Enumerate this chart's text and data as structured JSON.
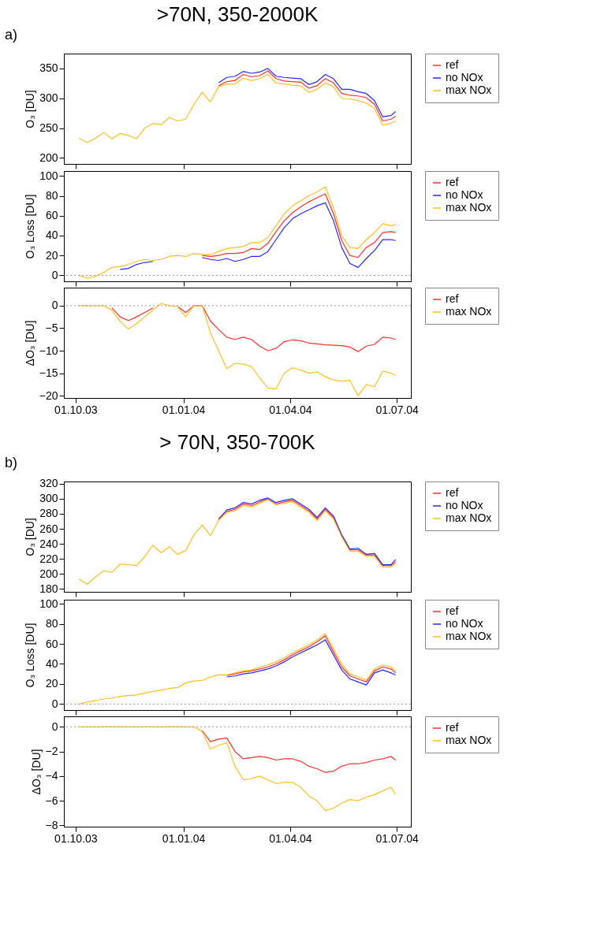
{
  "chart_data": [
    {
      "type": "line",
      "title": ">70N, 350-2000K",
      "annotations": [
        "a)"
      ],
      "ylabel": "O₃ [DU]",
      "tick_labels": "y",
      "legend": "right",
      "x": [
        "2003-10-04",
        "2003-10-11",
        "2003-10-18",
        "2003-10-25",
        "2003-11-01",
        "2003-11-08",
        "2003-11-15",
        "2003-11-22",
        "2003-11-29",
        "2003-12-06",
        "2003-12-13",
        "2003-12-20",
        "2003-12-27",
        "2004-01-03",
        "2004-01-10",
        "2004-01-17",
        "2004-01-24",
        "2004-01-31",
        "2004-02-07",
        "2004-02-14",
        "2004-02-21",
        "2004-02-28",
        "2004-03-06",
        "2004-03-13",
        "2004-03-20",
        "2004-03-27",
        "2004-04-03",
        "2004-04-10",
        "2004-04-17",
        "2004-04-24",
        "2004-05-01",
        "2004-05-08",
        "2004-05-15",
        "2004-05-22",
        "2004-05-29",
        "2004-06-05",
        "2004-06-12",
        "2004-06-19",
        "2004-06-26",
        "2004-06-30"
      ],
      "xlim": [
        "2003-09-21",
        "2004-07-13"
      ],
      "xticks": [
        {
          "value": "2003-10-01",
          "label": null
        },
        {
          "value": "2004-01-01",
          "label": null
        },
        {
          "value": "2004-04-01",
          "label": null
        },
        {
          "value": "2004-07-01",
          "label": null
        }
      ],
      "ylim": [
        190,
        375
      ],
      "yticks": [
        200,
        250,
        300,
        350
      ],
      "series": [
        {
          "name": "ref",
          "color": "#ff3030",
          "values": [
            null,
            null,
            null,
            null,
            null,
            null,
            null,
            null,
            null,
            null,
            null,
            null,
            null,
            null,
            null,
            null,
            null,
            321,
            328,
            330,
            340,
            336,
            338,
            346,
            333,
            329,
            328,
            327,
            317,
            321,
            333,
            326,
            308,
            305,
            304,
            301,
            290,
            262,
            265,
            270
          ]
        },
        {
          "name": "no NOx",
          "color": "#2828ff",
          "values": [
            null,
            null,
            null,
            null,
            null,
            null,
            null,
            null,
            null,
            null,
            null,
            null,
            null,
            null,
            null,
            null,
            null,
            326,
            335,
            337,
            345,
            342,
            344,
            350,
            337,
            335,
            334,
            333,
            323,
            328,
            340,
            333,
            315,
            315,
            311,
            308,
            296,
            269,
            271,
            278
          ]
        },
        {
          "name": "max NOx",
          "color": "#ffc020",
          "values": [
            233,
            226,
            233,
            243,
            232,
            241,
            238,
            232,
            250,
            258,
            256,
            268,
            262,
            265,
            290,
            310,
            294,
            319,
            324,
            324,
            334,
            330,
            333,
            340,
            326,
            324,
            322,
            321,
            310,
            315,
            326,
            319,
            300,
            299,
            296,
            292,
            283,
            255,
            258,
            262
          ]
        }
      ]
    },
    {
      "type": "line",
      "ylabel": "O₃ Loss [DU]",
      "tick_labels": "y",
      "legend": "right",
      "x": [
        "2003-10-04",
        "2003-10-11",
        "2003-10-18",
        "2003-10-25",
        "2003-11-01",
        "2003-11-08",
        "2003-11-15",
        "2003-11-22",
        "2003-11-29",
        "2003-12-06",
        "2003-12-13",
        "2003-12-20",
        "2003-12-27",
        "2004-01-03",
        "2004-01-10",
        "2004-01-17",
        "2004-01-24",
        "2004-01-31",
        "2004-02-07",
        "2004-02-14",
        "2004-02-21",
        "2004-02-28",
        "2004-03-06",
        "2004-03-13",
        "2004-03-20",
        "2004-03-27",
        "2004-04-03",
        "2004-04-10",
        "2004-04-17",
        "2004-04-24",
        "2004-05-01",
        "2004-05-08",
        "2004-05-15",
        "2004-05-22",
        "2004-05-29",
        "2004-06-05",
        "2004-06-12",
        "2004-06-19",
        "2004-06-26",
        "2004-06-30"
      ],
      "xlim": [
        "2003-09-21",
        "2004-07-13"
      ],
      "xticks": [
        {
          "value": "2003-10-01",
          "label": null
        },
        {
          "value": "2004-01-01",
          "label": null
        },
        {
          "value": "2004-04-01",
          "label": null
        },
        {
          "value": "2004-07-01",
          "label": null
        }
      ],
      "ylim": [
        -6,
        105
      ],
      "yticks": [
        0,
        20,
        40,
        60,
        80,
        100
      ],
      "ref_lines": [
        {
          "axis": "y",
          "value": 0,
          "line_style": "dotted",
          "color": "#999999"
        }
      ],
      "series": [
        {
          "name": "ref",
          "color": "#ff3030",
          "values": [
            null,
            null,
            null,
            null,
            null,
            null,
            null,
            null,
            null,
            null,
            null,
            null,
            null,
            null,
            null,
            20,
            19,
            20,
            22,
            22,
            23,
            27,
            26,
            32,
            44,
            55,
            63,
            69,
            74,
            78,
            82,
            62,
            35,
            20,
            18,
            28,
            33,
            43,
            44,
            43
          ]
        },
        {
          "name": "no NOx",
          "color": "#2828ff",
          "values": [
            null,
            null,
            null,
            null,
            null,
            6,
            7,
            11,
            13,
            14,
            null,
            null,
            null,
            null,
            null,
            18,
            16,
            15,
            17,
            14,
            16,
            19,
            19,
            24,
            36,
            48,
            57,
            62,
            66,
            70,
            73,
            55,
            28,
            12,
            8,
            17,
            25,
            36,
            36,
            35
          ]
        },
        {
          "name": "max NOx",
          "color": "#ffc020",
          "values": [
            0,
            -3,
            -1,
            3,
            8,
            9,
            11,
            14,
            16,
            15,
            16,
            19,
            20,
            19,
            22,
            21,
            21,
            24,
            27,
            28,
            29,
            33,
            33,
            38,
            50,
            62,
            70,
            75,
            80,
            84,
            89,
            68,
            40,
            28,
            27,
            36,
            43,
            52,
            50,
            51
          ]
        }
      ]
    },
    {
      "type": "line",
      "ylabel": "ΔO₃ [DU]",
      "legend": "right",
      "x": [
        "2003-10-04",
        "2003-10-11",
        "2003-10-18",
        "2003-10-25",
        "2003-11-01",
        "2003-11-08",
        "2003-11-15",
        "2003-11-22",
        "2003-11-29",
        "2003-12-06",
        "2003-12-13",
        "2003-12-20",
        "2003-12-27",
        "2004-01-03",
        "2004-01-10",
        "2004-01-17",
        "2004-01-24",
        "2004-01-31",
        "2004-02-07",
        "2004-02-14",
        "2004-02-21",
        "2004-02-28",
        "2004-03-06",
        "2004-03-13",
        "2004-03-20",
        "2004-03-27",
        "2004-04-03",
        "2004-04-10",
        "2004-04-17",
        "2004-04-24",
        "2004-05-01",
        "2004-05-08",
        "2004-05-15",
        "2004-05-22",
        "2004-05-29",
        "2004-06-05",
        "2004-06-12",
        "2004-06-19",
        "2004-06-26",
        "2004-06-30"
      ],
      "xlim": [
        "2003-09-21",
        "2004-07-13"
      ],
      "xticks": [
        {
          "value": "2003-10-01",
          "label": "01.10.03"
        },
        {
          "value": "2004-01-01",
          "label": "01.01.04"
        },
        {
          "value": "2004-04-01",
          "label": "01.04.04"
        },
        {
          "value": "2004-07-01",
          "label": "01.07.04"
        }
      ],
      "ylim": [
        -20.5,
        4
      ],
      "yticks": [
        -20,
        -15,
        -10,
        -5,
        0
      ],
      "ref_lines": [
        {
          "axis": "y",
          "value": 0,
          "line_style": "dotted",
          "color": "#999999"
        }
      ],
      "series": [
        {
          "name": "ref",
          "color": "#ff3030",
          "values": [
            null,
            null,
            null,
            null,
            -0.5,
            -2.5,
            -3.3,
            -2.5,
            -1.5,
            -0.5,
            null,
            null,
            -0.2,
            -1.5,
            0,
            0,
            -3.4,
            -5.3,
            -7,
            -7.5,
            -7,
            -7.5,
            -9,
            -10,
            -9.5,
            -8,
            -7.6,
            -7.8,
            -8.3,
            -8.5,
            -8.7,
            -8.8,
            -8.9,
            -9.2,
            -10.2,
            -9,
            -8.6,
            -7,
            -7.2,
            -7.5
          ]
        },
        {
          "name": "max NOx",
          "color": "#ffc020",
          "values": [
            0,
            0,
            0,
            0,
            -1,
            -3.5,
            -5.2,
            -4,
            -2.5,
            -1,
            0.5,
            0,
            -0.2,
            -2.5,
            0,
            0,
            -6,
            -10,
            -14,
            -12.8,
            -13,
            -13.5,
            -16,
            -18.3,
            -18.5,
            -15,
            -13.8,
            -14.3,
            -15,
            -14.7,
            -15.8,
            -16.5,
            -16.8,
            -16.6,
            -20,
            -17.5,
            -18,
            -14.5,
            -15,
            -15.5
          ]
        }
      ]
    },
    {
      "type": "line",
      "title": "> 70N, 350-700K",
      "annotations": [
        "b)"
      ],
      "ylabel": "O₃ [DU]",
      "tick_labels": "y",
      "legend": "right",
      "x": [
        "2003-10-04",
        "2003-10-11",
        "2003-10-18",
        "2003-10-25",
        "2003-11-01",
        "2003-11-08",
        "2003-11-15",
        "2003-11-22",
        "2003-11-29",
        "2003-12-06",
        "2003-12-13",
        "2003-12-20",
        "2003-12-27",
        "2004-01-03",
        "2004-01-10",
        "2004-01-17",
        "2004-01-24",
        "2004-01-31",
        "2004-02-07",
        "2004-02-14",
        "2004-02-21",
        "2004-02-28",
        "2004-03-06",
        "2004-03-13",
        "2004-03-20",
        "2004-03-27",
        "2004-04-03",
        "2004-04-10",
        "2004-04-17",
        "2004-04-24",
        "2004-05-01",
        "2004-05-08",
        "2004-05-15",
        "2004-05-22",
        "2004-05-29",
        "2004-06-05",
        "2004-06-12",
        "2004-06-19",
        "2004-06-26",
        "2004-06-30"
      ],
      "xlim": [
        "2003-09-21",
        "2004-07-13"
      ],
      "xticks": [
        {
          "value": "2003-10-01",
          "label": null
        },
        {
          "value": "2004-01-01",
          "label": null
        },
        {
          "value": "2004-04-01",
          "label": null
        },
        {
          "value": "2004-07-01",
          "label": null
        }
      ],
      "ylim": [
        176,
        323
      ],
      "yticks": [
        180,
        200,
        220,
        240,
        260,
        280,
        300,
        320
      ],
      "series": [
        {
          "name": "ref",
          "color": "#ff3030",
          "values": [
            null,
            null,
            null,
            null,
            null,
            null,
            null,
            null,
            null,
            null,
            null,
            null,
            null,
            null,
            null,
            null,
            null,
            272,
            283,
            286,
            293,
            291,
            296,
            300,
            293,
            296,
            298,
            291,
            284,
            273,
            286,
            275,
            251,
            232,
            232,
            225,
            225,
            211,
            211,
            216
          ]
        },
        {
          "name": "no NOx",
          "color": "#2828ff",
          "values": [
            null,
            null,
            null,
            null,
            null,
            null,
            null,
            null,
            null,
            null,
            null,
            null,
            null,
            null,
            null,
            null,
            null,
            273,
            285,
            288,
            295,
            293,
            298,
            301,
            295,
            298,
            300,
            293,
            286,
            275,
            288,
            277,
            252,
            233,
            234,
            226,
            227,
            212,
            212,
            219
          ]
        },
        {
          "name": "max NOx",
          "color": "#ffc020",
          "values": [
            193,
            186,
            196,
            204,
            202,
            213,
            212,
            211,
            223,
            238,
            228,
            236,
            226,
            231,
            252,
            265,
            251,
            271,
            282,
            284,
            291,
            289,
            294,
            299,
            292,
            294,
            296,
            289,
            282,
            271,
            284,
            273,
            249,
            230,
            230,
            223,
            223,
            209,
            209,
            214
          ]
        }
      ]
    },
    {
      "type": "line",
      "ylabel": "O₃ Loss [DU]",
      "tick_labels": "y",
      "legend": "right",
      "x": [
        "2003-10-04",
        "2003-10-11",
        "2003-10-18",
        "2003-10-25",
        "2003-11-01",
        "2003-11-08",
        "2003-11-15",
        "2003-11-22",
        "2003-11-29",
        "2003-12-06",
        "2003-12-13",
        "2003-12-20",
        "2003-12-27",
        "2004-01-03",
        "2004-01-10",
        "2004-01-17",
        "2004-01-24",
        "2004-01-31",
        "2004-02-07",
        "2004-02-14",
        "2004-02-21",
        "2004-02-28",
        "2004-03-06",
        "2004-03-13",
        "2004-03-20",
        "2004-03-27",
        "2004-04-03",
        "2004-04-10",
        "2004-04-17",
        "2004-04-24",
        "2004-05-01",
        "2004-05-08",
        "2004-05-15",
        "2004-05-22",
        "2004-05-29",
        "2004-06-05",
        "2004-06-12",
        "2004-06-19",
        "2004-06-26",
        "2004-06-30"
      ],
      "xlim": [
        "2003-09-21",
        "2004-07-13"
      ],
      "xticks": [
        {
          "value": "2003-10-01",
          "label": null
        },
        {
          "value": "2004-01-01",
          "label": null
        },
        {
          "value": "2004-04-01",
          "label": null
        },
        {
          "value": "2004-07-01",
          "label": null
        }
      ],
      "ylim": [
        -6,
        104
      ],
      "yticks": [
        0,
        20,
        40,
        60,
        80,
        100
      ],
      "ref_lines": [
        {
          "axis": "y",
          "value": 0,
          "line_style": "dotted",
          "color": "#999999"
        }
      ],
      "series": [
        {
          "name": "ref",
          "color": "#ff3030",
          "values": [
            null,
            null,
            null,
            null,
            null,
            null,
            null,
            null,
            null,
            null,
            null,
            null,
            null,
            null,
            null,
            null,
            null,
            null,
            28.5,
            30,
            32,
            33,
            35,
            37,
            40,
            44,
            49,
            53,
            57,
            62,
            68,
            52,
            37,
            28,
            25,
            22,
            33,
            37,
            35,
            31
          ]
        },
        {
          "name": "no NOx",
          "color": "#2828ff",
          "values": [
            null,
            null,
            null,
            null,
            null,
            null,
            null,
            null,
            null,
            null,
            null,
            null,
            null,
            null,
            null,
            null,
            null,
            null,
            27,
            28,
            30,
            31,
            33,
            35,
            38,
            42,
            47,
            51,
            55,
            59,
            64,
            49,
            34,
            25,
            22,
            19,
            31,
            34,
            31,
            29
          ]
        },
        {
          "name": "max NOx",
          "color": "#ffc020",
          "values": [
            0,
            2,
            3.5,
            5,
            6,
            7.5,
            8.5,
            9,
            11,
            12.5,
            14,
            15.5,
            16.5,
            21,
            23,
            23.5,
            27,
            29,
            29,
            31,
            33,
            34,
            37,
            39,
            42,
            46,
            51,
            55,
            59,
            64,
            70,
            55,
            40,
            30,
            27,
            24,
            35,
            39,
            37,
            33
          ]
        }
      ]
    },
    {
      "type": "line",
      "ylabel": "ΔO₃ [DU]",
      "legend": "right",
      "x": [
        "2003-10-04",
        "2003-10-11",
        "2003-10-18",
        "2003-10-25",
        "2003-11-01",
        "2003-11-08",
        "2003-11-15",
        "2003-11-22",
        "2003-11-29",
        "2003-12-06",
        "2003-12-13",
        "2003-12-20",
        "2003-12-27",
        "2004-01-03",
        "2004-01-10",
        "2004-01-17",
        "2004-01-24",
        "2004-01-31",
        "2004-02-07",
        "2004-02-14",
        "2004-02-21",
        "2004-02-28",
        "2004-03-06",
        "2004-03-13",
        "2004-03-20",
        "2004-03-27",
        "2004-04-03",
        "2004-04-10",
        "2004-04-17",
        "2004-04-24",
        "2004-05-01",
        "2004-05-08",
        "2004-05-15",
        "2004-05-22",
        "2004-05-29",
        "2004-06-05",
        "2004-06-12",
        "2004-06-19",
        "2004-06-26",
        "2004-06-30"
      ],
      "xlim": [
        "2003-09-21",
        "2004-07-13"
      ],
      "xticks": [
        {
          "value": "2003-10-01",
          "label": "01.10.03"
        },
        {
          "value": "2004-01-01",
          "label": "01.01.04"
        },
        {
          "value": "2004-04-01",
          "label": "01.04.04"
        },
        {
          "value": "2004-07-01",
          "label": "01.07.04"
        }
      ],
      "ylim": [
        -8.1,
        0.85
      ],
      "yticks": [
        -8,
        -6,
        -4,
        -2,
        0
      ],
      "ref_lines": [
        {
          "axis": "y",
          "value": 0,
          "line_style": "dotted",
          "color": "#999999"
        }
      ],
      "series": [
        {
          "name": "ref",
          "color": "#ff3030",
          "values": [
            null,
            null,
            null,
            null,
            null,
            null,
            null,
            null,
            null,
            null,
            null,
            null,
            null,
            null,
            null,
            -0.3,
            -1.2,
            -1,
            -0.9,
            -2,
            -2.6,
            -2.5,
            -2.4,
            -2.5,
            -2.7,
            -2.6,
            -2.6,
            -2.8,
            -3.2,
            -3.4,
            -3.7,
            -3.6,
            -3.2,
            -3,
            -3,
            -2.9,
            -2.7,
            -2.6,
            -2.4,
            -2.7
          ]
        },
        {
          "name": "max NOx",
          "color": "#ffc020",
          "values": [
            0,
            0,
            0,
            0,
            0,
            0,
            0,
            0,
            0,
            0,
            0,
            0,
            0,
            0,
            0,
            -0.4,
            -1.8,
            -1.5,
            -1.3,
            -3.2,
            -4.3,
            -4.2,
            -4,
            -4.3,
            -4.6,
            -4.5,
            -4.5,
            -4.9,
            -5.6,
            -6,
            -6.8,
            -6.6,
            -6.2,
            -5.9,
            -6,
            -5.7,
            -5.5,
            -5.2,
            -4.9,
            -5.5
          ]
        }
      ]
    }
  ]
}
